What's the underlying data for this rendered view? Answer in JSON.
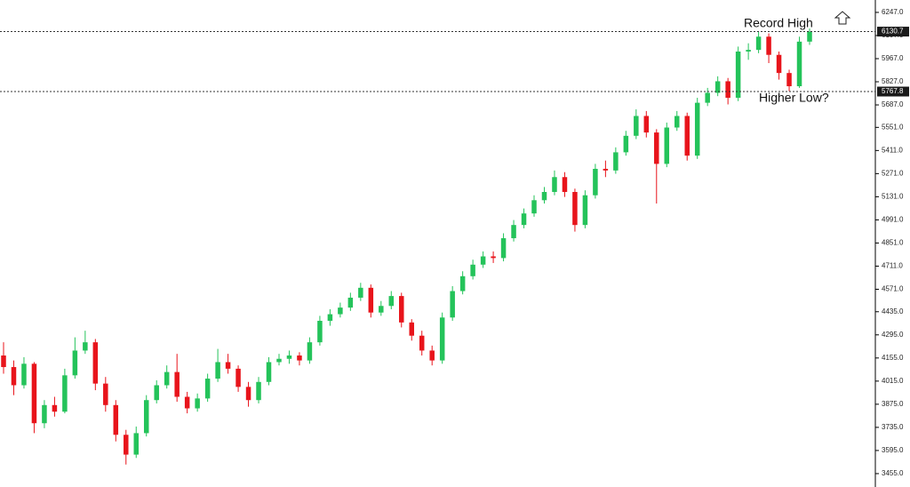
{
  "chart_data": {
    "type": "candlestick",
    "up_color": "#24c35a",
    "down_color": "#e8141b",
    "ylim": [
      3374,
      6322
    ],
    "yticks": [
      {
        "value": 3455,
        "label": "3455.0"
      },
      {
        "value": 3595,
        "label": "3595.0"
      },
      {
        "value": 3735,
        "label": "3735.0"
      },
      {
        "value": 3875,
        "label": "3875.0"
      },
      {
        "value": 4015,
        "label": "4015.0"
      },
      {
        "value": 4155,
        "label": "4155.0"
      },
      {
        "value": 4295,
        "label": "4295.0"
      },
      {
        "value": 4435,
        "label": "4435.0"
      },
      {
        "value": 4571,
        "label": "4571.0"
      },
      {
        "value": 4711,
        "label": "4711.0"
      },
      {
        "value": 4851,
        "label": "4851.0"
      },
      {
        "value": 4991,
        "label": "4991.0"
      },
      {
        "value": 5131,
        "label": "5131.0"
      },
      {
        "value": 5271,
        "label": "5271.0"
      },
      {
        "value": 5411,
        "label": "5411.0"
      },
      {
        "value": 5551,
        "label": "5551.0"
      },
      {
        "value": 5687,
        "label": "5687.0"
      },
      {
        "value": 5827,
        "label": "5827.0"
      },
      {
        "value": 5967,
        "label": "5967.0"
      },
      {
        "value": 6107,
        "label": "6107.0"
      },
      {
        "value": 6247,
        "label": "6247.0"
      }
    ],
    "hlines": [
      6130.7,
      5767.8
    ],
    "annotations": [
      "Record High",
      "Higher Low?"
    ],
    "open": [
      4170,
      4100,
      3990,
      4120,
      3760,
      3870,
      3830,
      4050,
      4200,
      4250,
      4000,
      3870,
      3690,
      3570,
      3700,
      3900,
      3990,
      4070,
      3920,
      3850,
      3910,
      4030,
      4130,
      4090,
      3980,
      3900,
      4010,
      4130,
      4150,
      4170,
      4140,
      4250,
      4380,
      4420,
      4460,
      4520,
      4580,
      4430,
      4470,
      4530,
      4370,
      4290,
      4200,
      4140,
      4400,
      4560,
      4650,
      4720,
      4770,
      4760,
      4880,
      4960,
      5030,
      5110,
      5160,
      5250,
      5160,
      4960,
      5140,
      5300,
      5290,
      5400,
      5500,
      5620,
      5520,
      5330,
      5550,
      5620,
      5380,
      5700,
      5760,
      5830,
      5730,
      6010,
      6020,
      6100,
      5990,
      5880,
      5800,
      6070
    ],
    "high": [
      4250,
      4140,
      4160,
      4130,
      3900,
      3920,
      4090,
      4280,
      4320,
      4270,
      4040,
      3900,
      3720,
      3740,
      3930,
      4020,
      4110,
      4180,
      3950,
      3940,
      4060,
      4210,
      4180,
      4110,
      4010,
      4040,
      4160,
      4180,
      4200,
      4190,
      4280,
      4410,
      4450,
      4490,
      4550,
      4610,
      4600,
      4500,
      4560,
      4550,
      4390,
      4320,
      4230,
      4430,
      4590,
      4680,
      4750,
      4800,
      4800,
      4910,
      4990,
      5060,
      5140,
      5190,
      5290,
      5280,
      5180,
      5170,
      5330,
      5350,
      5430,
      5530,
      5660,
      5650,
      5540,
      5580,
      5650,
      5640,
      5730,
      5790,
      5860,
      5850,
      6040,
      6060,
      6130,
      6120,
      6010,
      5900,
      6100,
      6150
    ],
    "low": [
      4060,
      3930,
      3970,
      3700,
      3730,
      3800,
      3820,
      4030,
      4180,
      3960,
      3830,
      3650,
      3510,
      3550,
      3680,
      3880,
      3970,
      3890,
      3820,
      3830,
      3890,
      4010,
      4060,
      3950,
      3860,
      3880,
      3990,
      4110,
      4120,
      4110,
      4120,
      4230,
      4350,
      4400,
      4440,
      4500,
      4400,
      4410,
      4450,
      4340,
      4260,
      4170,
      4110,
      4120,
      4380,
      4540,
      4630,
      4700,
      4730,
      4740,
      4860,
      4940,
      5010,
      5090,
      5140,
      5130,
      4920,
      4940,
      5120,
      5250,
      5270,
      5380,
      5480,
      5490,
      5090,
      5310,
      5530,
      5350,
      5360,
      5680,
      5740,
      5690,
      5710,
      5960,
      6000,
      5940,
      5840,
      5770,
      5790,
      6050
    ],
    "close": [
      4100,
      3990,
      4120,
      3760,
      3870,
      3830,
      4050,
      4200,
      4250,
      4000,
      3870,
      3690,
      3570,
      3700,
      3900,
      3990,
      4070,
      3920,
      3850,
      3910,
      4030,
      4130,
      4090,
      3980,
      3900,
      4010,
      4130,
      4150,
      4170,
      4140,
      4250,
      4380,
      4420,
      4460,
      4520,
      4580,
      4430,
      4470,
      4530,
      4370,
      4290,
      4200,
      4140,
      4400,
      4560,
      4650,
      4720,
      4770,
      4760,
      4880,
      4960,
      5030,
      5110,
      5160,
      5250,
      5160,
      4960,
      5140,
      5300,
      5290,
      5400,
      5500,
      5620,
      5520,
      5330,
      5550,
      5620,
      5380,
      5700,
      5760,
      5830,
      5730,
      6010,
      6020,
      6100,
      5990,
      5880,
      5800,
      6070,
      6130.7
    ]
  }
}
